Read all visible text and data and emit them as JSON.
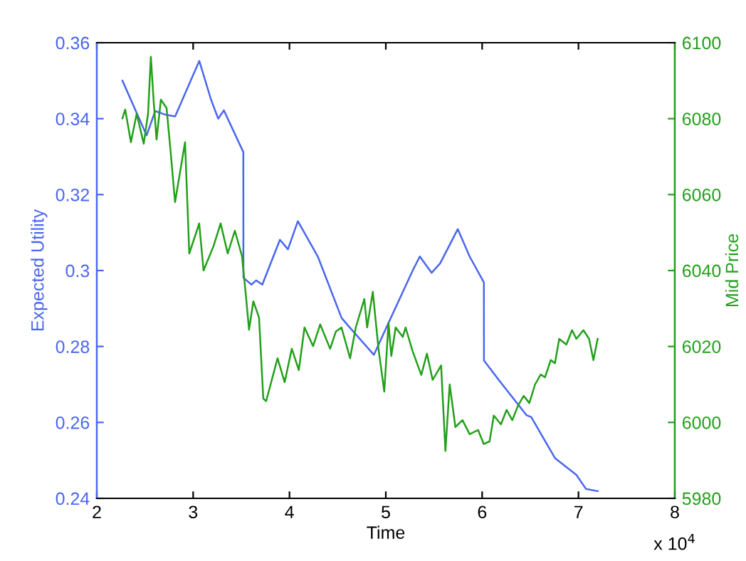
{
  "chart_data": {
    "type": "line",
    "xlabel": "Time",
    "ylabel": "Expected Utility",
    "y2label": "Mid Price",
    "xlim": [
      2,
      8
    ],
    "xticks": [
      2,
      3,
      4,
      5,
      6,
      7,
      8
    ],
    "ylim": [
      0.24,
      0.36
    ],
    "yticks": [
      0.24,
      0.26,
      0.28,
      0.3,
      0.32,
      0.34,
      0.36
    ],
    "y2lim": [
      5980,
      6100
    ],
    "y2ticks": [
      5980,
      6000,
      6020,
      6040,
      6060,
      6080,
      6100
    ],
    "annotations": [
      "x 10$^{4}$"
    ],
    "grid": false,
    "legend": false,
    "marker": "none",
    "line_style": "solid",
    "series": [
      {
        "color": "#4a66f0",
        "axis": "y",
        "x": [
          2.266,
          2.517,
          2.606,
          2.719,
          2.813,
          3.064,
          3.186,
          3.26,
          3.319,
          3.521,
          3.522,
          3.605,
          3.654,
          3.718,
          3.901,
          3.984,
          4.087,
          4.294,
          4.541,
          4.615,
          4.876,
          4.984,
          5.279,
          5.353,
          5.476,
          5.564,
          5.747,
          5.87,
          6.018,
          6.019,
          6.19,
          6.461,
          6.51,
          6.756,
          6.978,
          7.077,
          7.2
        ],
        "values": [
          0.35,
          0.3356,
          0.342,
          0.341,
          0.3406,
          0.3552,
          0.345,
          0.34,
          0.3422,
          0.3312,
          0.2981,
          0.2963,
          0.2974,
          0.2963,
          0.3081,
          0.3056,
          0.313,
          0.3037,
          0.2875,
          0.2853,
          0.2778,
          0.2838,
          0.3,
          0.3037,
          0.2994,
          0.3019,
          0.3109,
          0.3037,
          0.2969,
          0.2763,
          0.2706,
          0.2619,
          0.2614,
          0.2506,
          0.2462,
          0.2425,
          0.2419
        ]
      },
      {
        "color": "#22a01a",
        "axis": "y2",
        "x": [
          2.266,
          2.295,
          2.354,
          2.414,
          2.487,
          2.532,
          2.561,
          2.591,
          2.62,
          2.665,
          2.724,
          2.768,
          2.812,
          2.916,
          2.96,
          3.063,
          3.108,
          3.211,
          3.285,
          3.359,
          3.433,
          3.507,
          3.551,
          3.58,
          3.625,
          3.684,
          3.728,
          3.758,
          3.876,
          3.95,
          4.024,
          4.097,
          4.156,
          4.245,
          4.319,
          4.422,
          4.481,
          4.54,
          4.629,
          4.688,
          4.777,
          4.806,
          4.865,
          4.924,
          4.984,
          5.028,
          5.057,
          5.102,
          5.176,
          5.205,
          5.279,
          5.368,
          5.427,
          5.486,
          5.574,
          5.619,
          5.663,
          5.722,
          5.796,
          5.87,
          5.958,
          6.017,
          6.077,
          6.121,
          6.195,
          6.254,
          6.313,
          6.372,
          6.431,
          6.49,
          6.549,
          6.608,
          6.653,
          6.712,
          6.756,
          6.8,
          6.874,
          6.933,
          6.978,
          7.051,
          7.11,
          7.155,
          7.199
        ],
        "values": [
          6080.1,
          6082.4,
          6073.8,
          6081.3,
          6073.4,
          6081.3,
          6096.3,
          6084.3,
          6074.5,
          6085,
          6082.8,
          6070.8,
          6058,
          6073.8,
          6044.5,
          6052.4,
          6040,
          6046.4,
          6052.4,
          6044.5,
          6050.5,
          6043.8,
          6032.5,
          6024.4,
          6031.9,
          6027.6,
          6006.3,
          6005.6,
          6016.9,
          6010.6,
          6019.4,
          6013.8,
          6025,
          6020.1,
          6025.8,
          6019.4,
          6023.9,
          6025,
          6016.9,
          6025,
          6032.5,
          6025,
          6034.4,
          6019.4,
          6008.1,
          6026.2,
          6017.5,
          6025,
          6022.5,
          6025,
          6018.7,
          6012.5,
          6018.1,
          6011.2,
          6015,
          5992.5,
          6010,
          5998.8,
          6000.6,
          5996.9,
          5998,
          5994.3,
          5995,
          6001.8,
          5999.5,
          6003.3,
          6000.6,
          6004.4,
          6007,
          6005.1,
          6010,
          6012.6,
          6011.9,
          6016.4,
          6015.6,
          6022,
          6020.5,
          6024.3,
          6022,
          6024.3,
          6022,
          6016.4,
          6022
        ]
      }
    ]
  }
}
